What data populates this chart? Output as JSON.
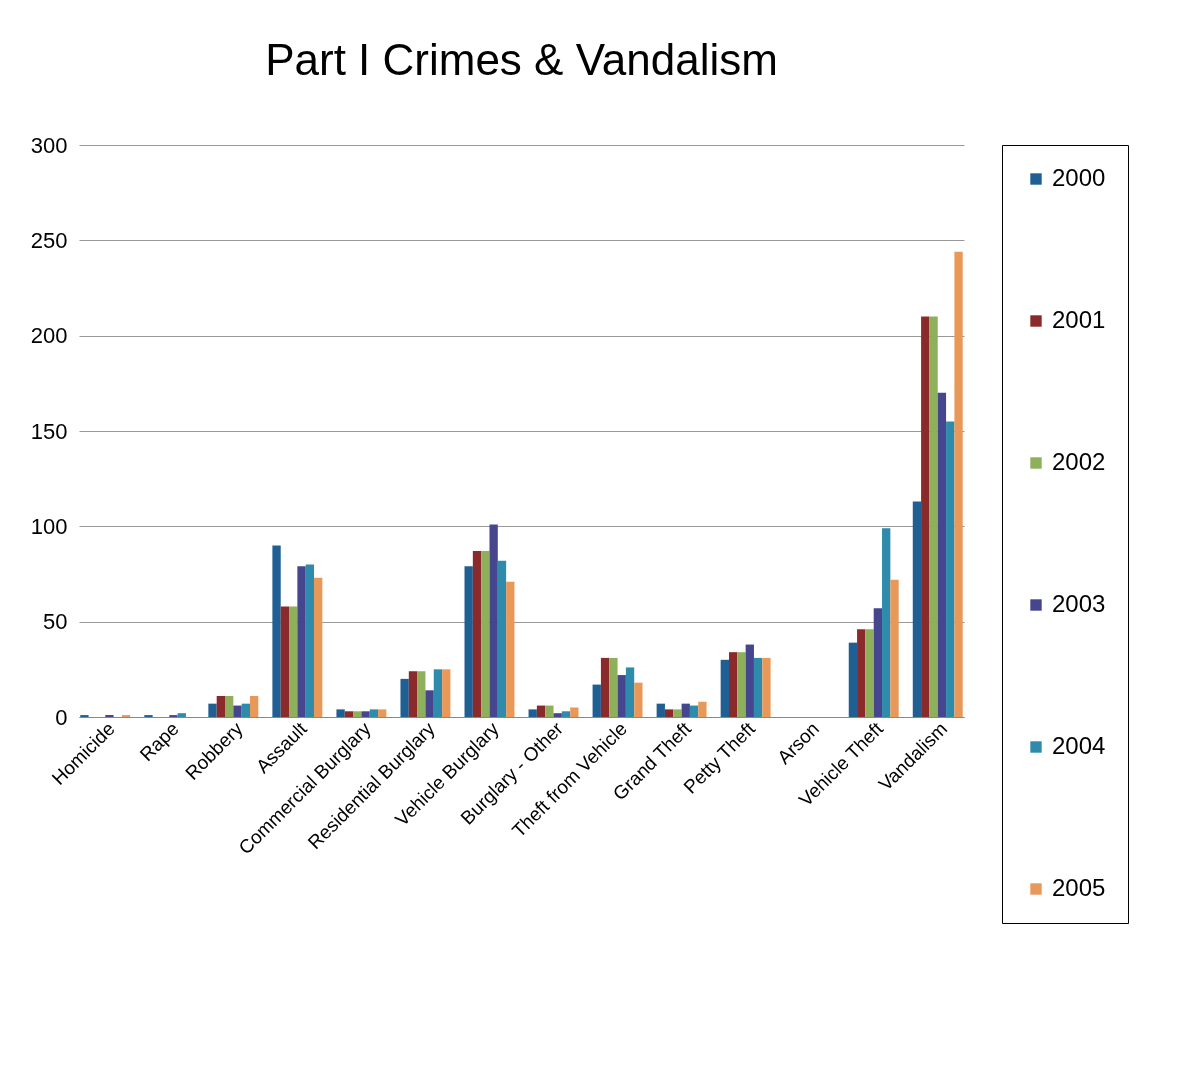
{
  "chart_data": {
    "type": "bar",
    "title": "Part I Crimes & Vandalism",
    "categories": [
      "Homicide",
      "Rape",
      "Robbery",
      "Assault",
      "Commercial Burglary",
      "Residential Burglary",
      "Vehicle Burglary",
      "Burglary - Other",
      "Theft from Vehicle",
      "Grand Theft",
      "Petty Theft",
      "Arson",
      "Vehicle Theft",
      "Vandalism"
    ],
    "series": [
      {
        "name": "2000",
        "color": "#1f5f94",
        "values": [
          1,
          1,
          7,
          90,
          4,
          20,
          79,
          4,
          17,
          7,
          30,
          0,
          39,
          113
        ]
      },
      {
        "name": "2001",
        "color": "#8b2a2a",
        "values": [
          0,
          0,
          11,
          58,
          3,
          24,
          87,
          6,
          31,
          4,
          34,
          0,
          46,
          210
        ]
      },
      {
        "name": "2002",
        "color": "#8fb05a",
        "values": [
          0,
          0,
          11,
          58,
          3,
          24,
          87,
          6,
          31,
          4,
          34,
          0,
          46,
          210
        ]
      },
      {
        "name": "2003",
        "color": "#46468f",
        "values": [
          1,
          1,
          6,
          79,
          3,
          14,
          101,
          2,
          22,
          7,
          38,
          0,
          57,
          170
        ]
      },
      {
        "name": "2004",
        "color": "#2e8bab",
        "values": [
          0,
          2,
          7,
          80,
          4,
          25,
          82,
          3,
          26,
          6,
          31,
          0,
          99,
          155
        ]
      },
      {
        "name": "2005",
        "color": "#e8995a",
        "values": [
          1,
          0,
          11,
          73,
          4,
          25,
          71,
          5,
          18,
          8,
          31,
          0,
          72,
          244
        ]
      }
    ],
    "ylim": [
      0,
      300
    ],
    "yticks": [
      0,
      50,
      100,
      150,
      200,
      250,
      300
    ],
    "grid": "y",
    "legend": "right"
  }
}
